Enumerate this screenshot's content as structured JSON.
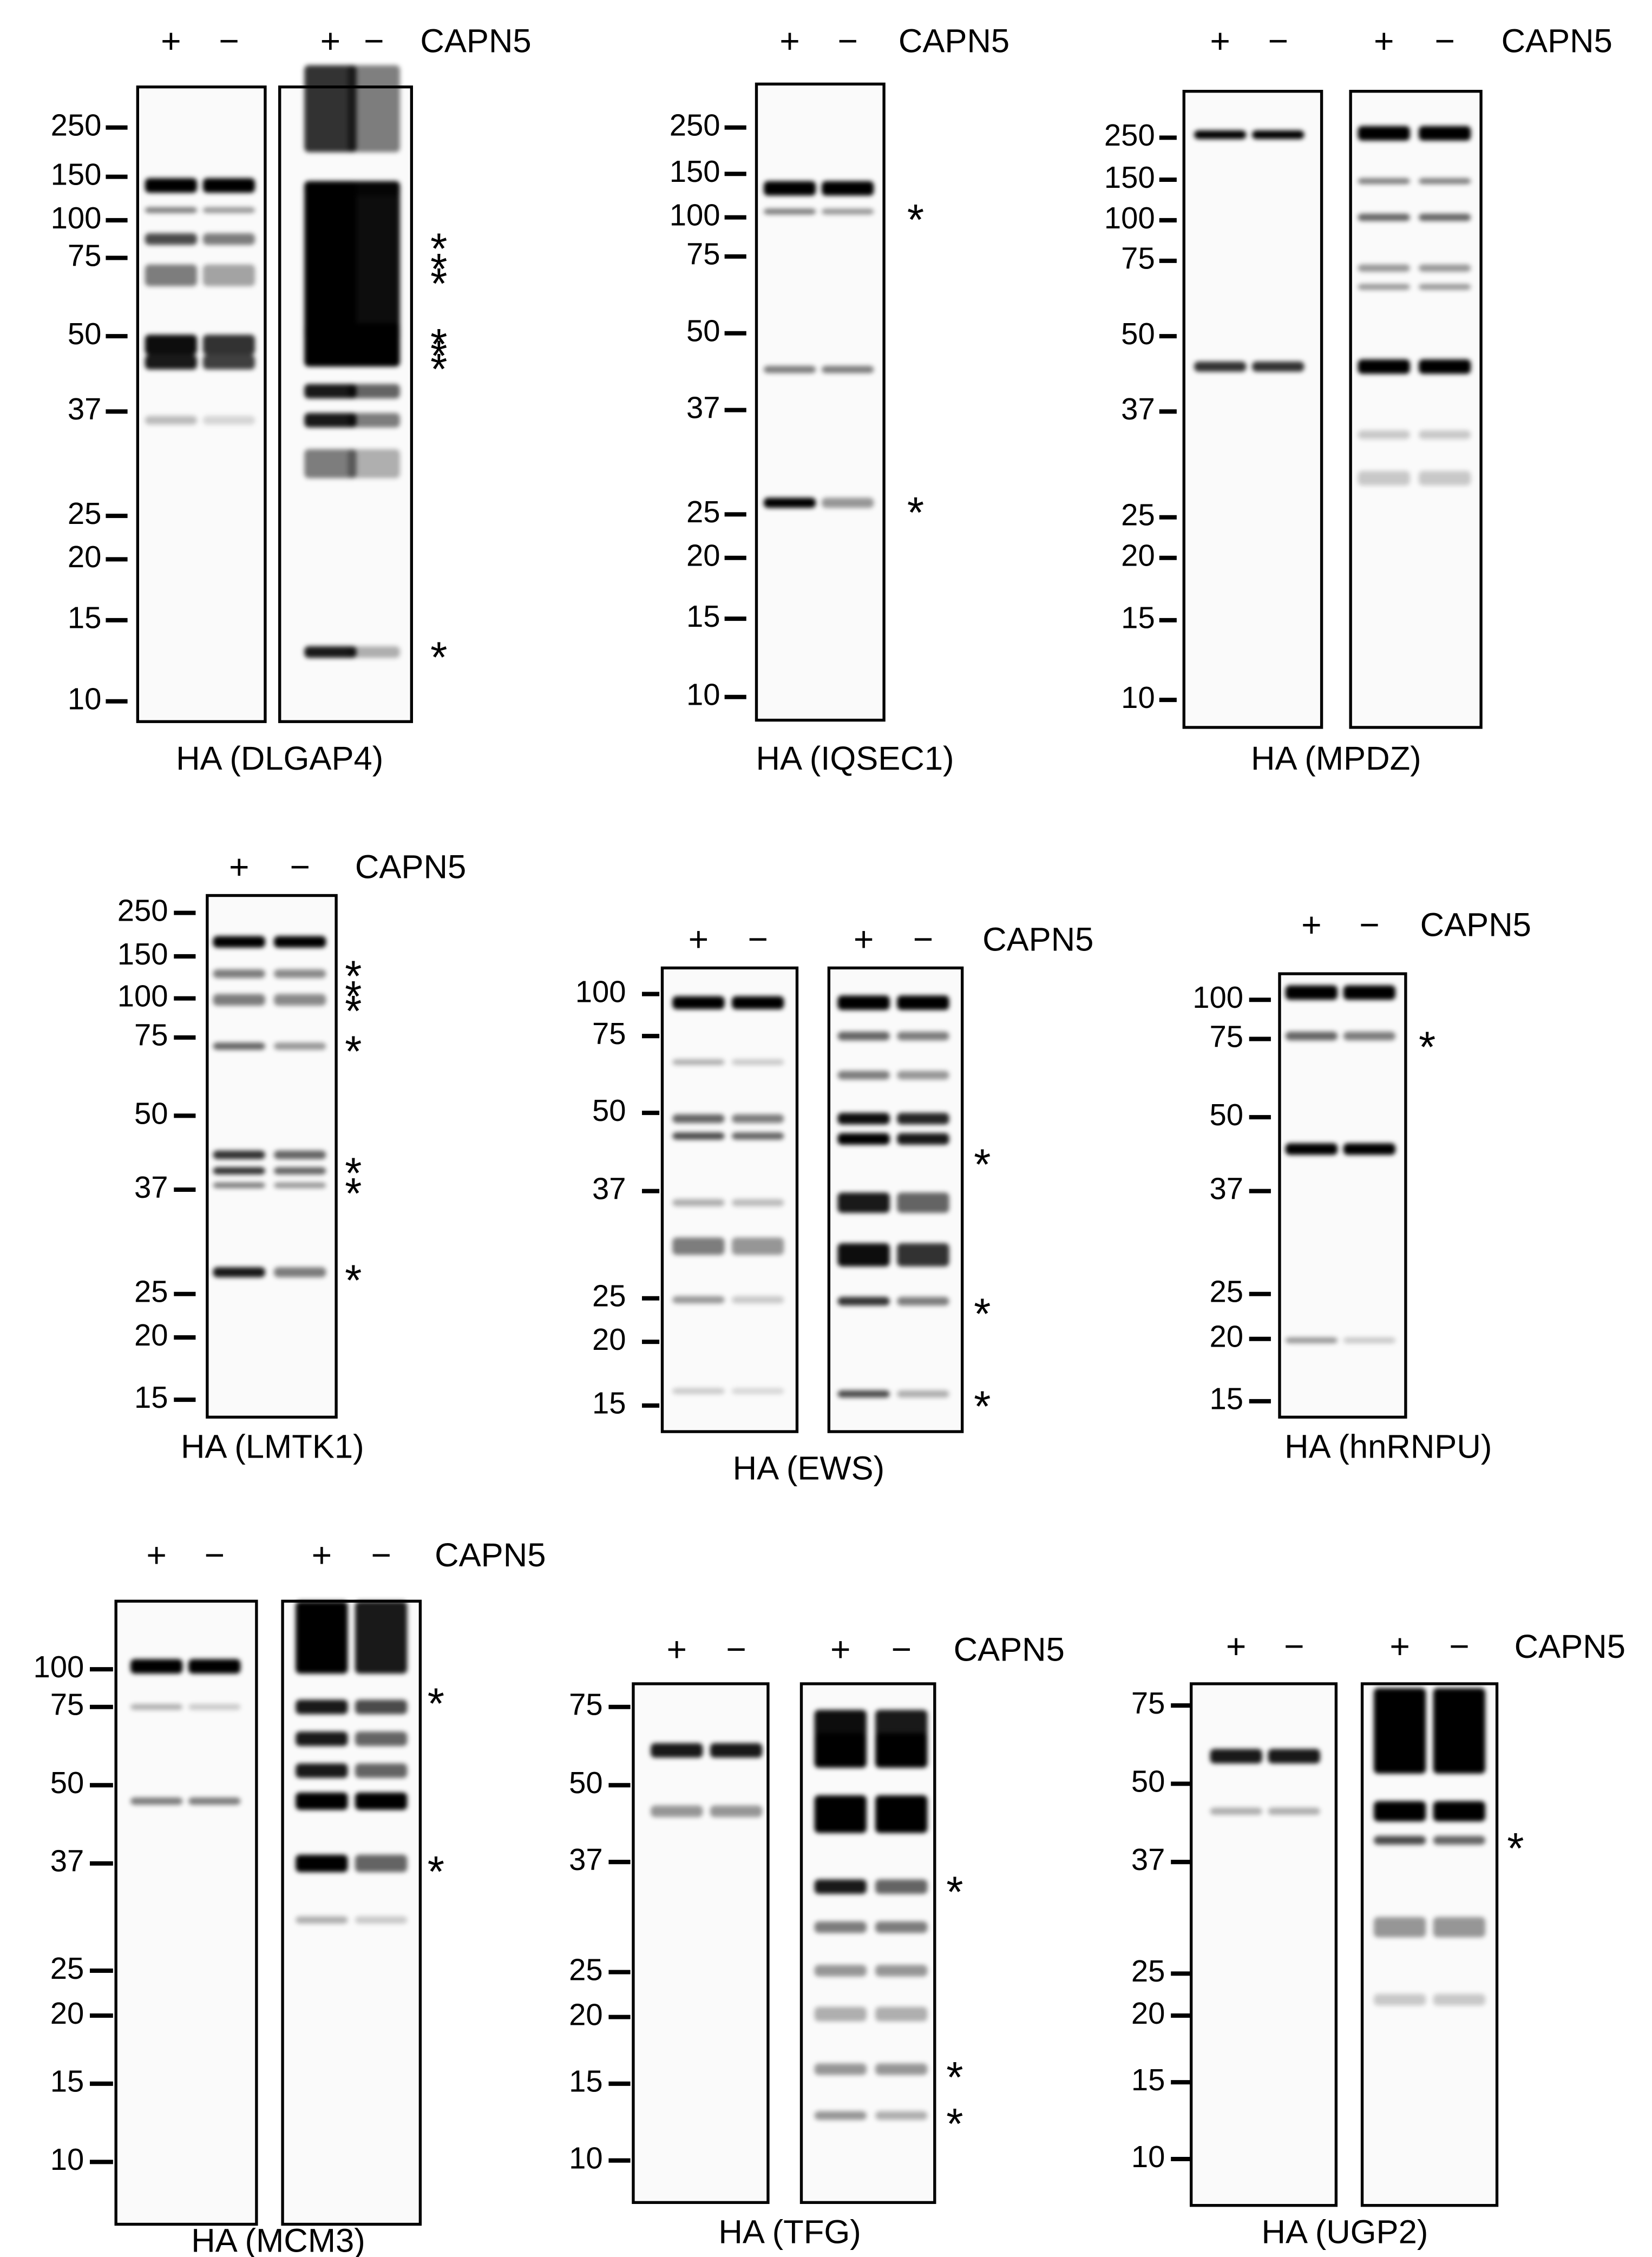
{
  "panels": [
    {
      "title": "HA (DLGAP4)",
      "treatment": "CAPN5",
      "lanes": [
        "+",
        "−",
        "+",
        "−"
      ],
      "markers": [
        "250",
        "150",
        "100",
        "75",
        "50",
        "37",
        "25",
        "20",
        "15",
        "10"
      ],
      "asterisks": [
        "*",
        "*",
        "*",
        "*",
        "*",
        "*",
        "*"
      ]
    },
    {
      "title": "HA (IQSEC1)",
      "treatment": "CAPN5",
      "lanes": [
        "+",
        "−"
      ],
      "markers": [
        "250",
        "150",
        "100",
        "75",
        "50",
        "37",
        "25",
        "20",
        "15",
        "10"
      ],
      "asterisks": [
        "*",
        "*"
      ]
    },
    {
      "title": "HA (MPDZ)",
      "treatment": "CAPN5",
      "lanes": [
        "+",
        "−",
        "+",
        "−"
      ],
      "markers": [
        "250",
        "150",
        "100",
        "75",
        "50",
        "37",
        "25",
        "20",
        "15",
        "10"
      ],
      "asterisks": []
    },
    {
      "title": "HA (LMTK1)",
      "treatment": "CAPN5",
      "lanes": [
        "+",
        "−"
      ],
      "markers": [
        "250",
        "150",
        "100",
        "75",
        "50",
        "37",
        "25",
        "20",
        "15"
      ],
      "asterisks": [
        "*",
        "*",
        "*",
        "*",
        "*",
        "*",
        "*"
      ]
    },
    {
      "title": "HA (EWS)",
      "treatment": "CAPN5",
      "lanes": [
        "+",
        "−",
        "+",
        "−"
      ],
      "markers": [
        "100",
        "75",
        "50",
        "37",
        "25",
        "20",
        "15"
      ],
      "asterisks": [
        "*",
        "*",
        "*"
      ]
    },
    {
      "title": "HA (hnRNPU)",
      "treatment": "CAPN5",
      "lanes": [
        "+",
        "−"
      ],
      "markers": [
        "100",
        "75",
        "50",
        "37",
        "25",
        "20",
        "15"
      ],
      "asterisks": [
        "*"
      ]
    },
    {
      "title": "HA (MCM3)",
      "treatment": "CAPN5",
      "lanes": [
        "+",
        "−",
        "+",
        "−"
      ],
      "markers": [
        "100",
        "75",
        "50",
        "37",
        "25",
        "20",
        "15",
        "10"
      ],
      "asterisks": [
        "*",
        "*"
      ]
    },
    {
      "title": "HA (TFG)",
      "treatment": "CAPN5",
      "lanes": [
        "+",
        "−",
        "+",
        "−"
      ],
      "markers": [
        "75",
        "50",
        "37",
        "25",
        "20",
        "15",
        "10"
      ],
      "asterisks": [
        "*",
        "*",
        "*"
      ]
    },
    {
      "title": "HA (UGP2)",
      "treatment": "CAPN5",
      "lanes": [
        "+",
        "−",
        "+",
        "−"
      ],
      "markers": [
        "75",
        "50",
        "37",
        "25",
        "20",
        "15",
        "10"
      ],
      "asterisks": [
        "*"
      ]
    }
  ]
}
